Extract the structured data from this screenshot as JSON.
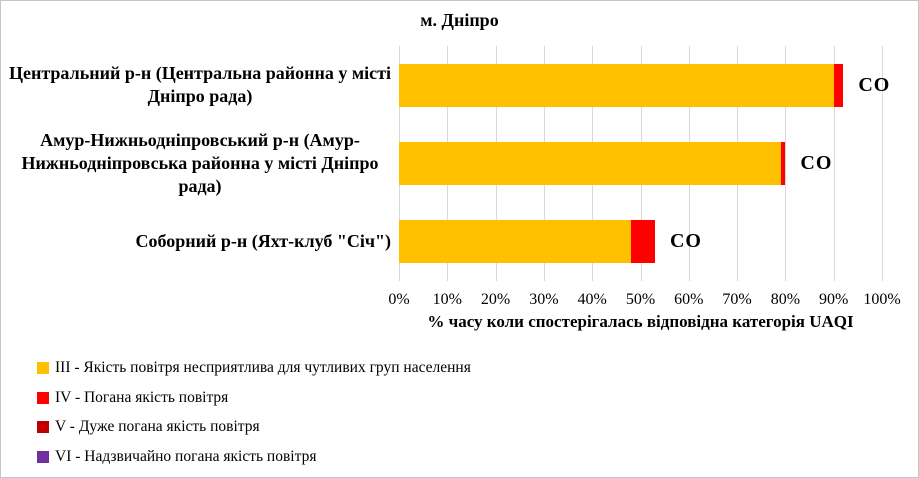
{
  "chart_data": {
    "type": "bar",
    "orientation": "horizontal",
    "stacked": true,
    "title": "м. Дніпро",
    "xlabel": "% часу коли спостерігалась відповідна категорія UAQI",
    "xlim": [
      0,
      100
    ],
    "x_ticks": [
      "0%",
      "10%",
      "20%",
      "30%",
      "40%",
      "50%",
      "60%",
      "70%",
      "80%",
      "90%",
      "100%"
    ],
    "grid": true,
    "legend_position": "bottom-left",
    "categories": [
      "Центральний р-н (Центральна районна у місті Дніпро рада)",
      "Амур-Нижньодніпровський р-н (Амур-Нижньодніпровська районна у місті Дніпро рада)",
      "Соборний р-н (Яхт-клуб \"Січ\")"
    ],
    "bar_annotations": [
      "CO",
      "CO",
      "CO"
    ],
    "series": [
      {
        "name": "III - Якість повітря несприятлива для чутливих груп населення",
        "color": "#FFC000",
        "values": [
          90,
          79,
          48
        ]
      },
      {
        "name": "IV - Погана якість повітря",
        "color": "#FF0000",
        "values": [
          2,
          1,
          5
        ]
      },
      {
        "name": "V - Дуже погана якість повітря",
        "color": "#C00000",
        "values": [
          0,
          0,
          0
        ]
      },
      {
        "name": "VI - Надзвичайно погана якість повітря",
        "color": "#7030A0",
        "values": [
          0,
          0,
          0
        ]
      }
    ],
    "colors": {
      "gridline": "#D9D9D9",
      "border": "#C5C5C5",
      "text": "#000000"
    }
  }
}
